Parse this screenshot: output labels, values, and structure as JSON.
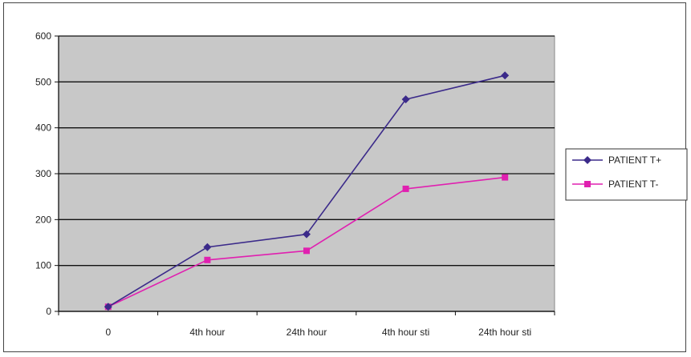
{
  "chart_data": {
    "type": "line",
    "categories": [
      "0",
      "4th hour",
      "24th hour",
      "4th hour sti",
      "24th hour sti"
    ],
    "series": [
      {
        "name": "PATIENT T+",
        "values": [
          10,
          140,
          168,
          462,
          514
        ],
        "color": "#3b2a8a",
        "marker": "diamond"
      },
      {
        "name": "PATIENT T-",
        "values": [
          10,
          112,
          132,
          267,
          292
        ],
        "color": "#e020b0",
        "marker": "square"
      }
    ],
    "ylim": [
      0,
      600
    ],
    "yticks": [
      0,
      100,
      200,
      300,
      400,
      500,
      600
    ],
    "title": "",
    "xlabel": "",
    "ylabel": "",
    "grid": "horizontal",
    "legend": "right",
    "plot_background": "#c8c8c8"
  }
}
